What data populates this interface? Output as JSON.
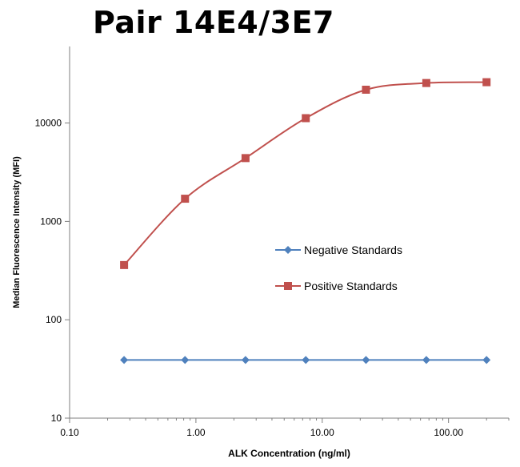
{
  "chart_data": {
    "type": "line",
    "title": "Pair 14E4/3E7",
    "xlabel": "ALK Concentration (ng/ml)",
    "ylabel": "Median Fluorescence Intensity (MFI)",
    "x_scale": "log",
    "y_scale": "log",
    "xlim": [
      0.1,
      300
    ],
    "ylim": [
      10,
      60000
    ],
    "x_ticks": [
      0.1,
      1,
      10,
      100
    ],
    "x_tick_labels": [
      "0.10",
      "1.00",
      "10.00",
      "100.00"
    ],
    "y_ticks": [
      10,
      100,
      1000,
      10000
    ],
    "y_tick_labels": [
      "10",
      "100",
      "1000",
      "10000"
    ],
    "grid": false,
    "legend_position": "center-right",
    "series": [
      {
        "name": "Negative Standards",
        "color": "#4f81bd",
        "marker": "diamond",
        "x": [
          0.27,
          0.82,
          2.47,
          7.41,
          22.2,
          66.7,
          200
        ],
        "y": [
          39,
          39,
          39,
          39,
          39,
          39,
          39
        ]
      },
      {
        "name": "Positive Standards",
        "color": "#c0504d",
        "marker": "square",
        "x": [
          0.27,
          0.82,
          2.47,
          7.41,
          22.2,
          66.7,
          200
        ],
        "y": [
          360,
          1700,
          4400,
          11200,
          21800,
          25500,
          26000
        ]
      }
    ]
  }
}
